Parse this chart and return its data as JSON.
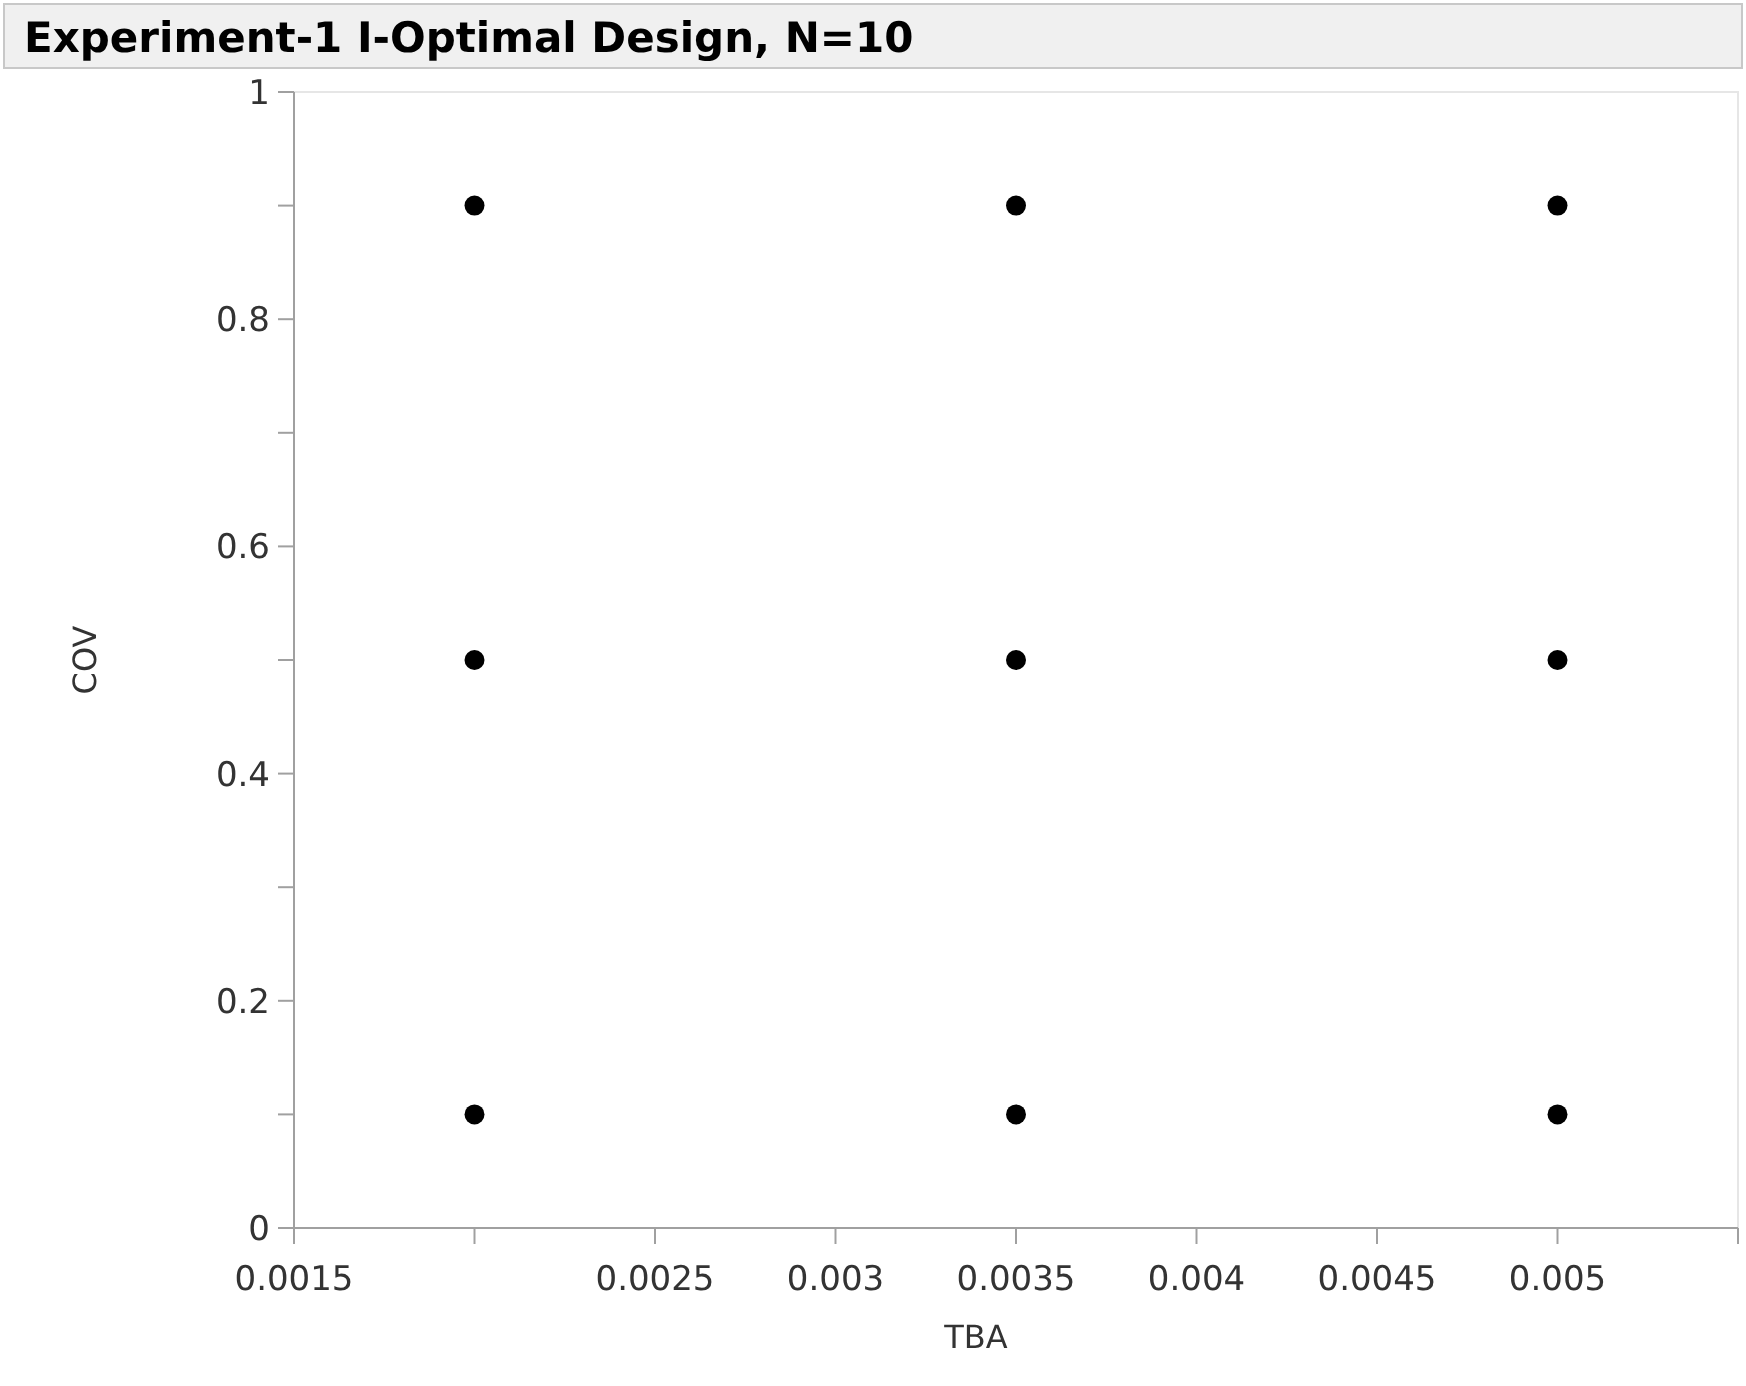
{
  "chart_data": {
    "type": "scatter",
    "title": "Experiment-1 I-Optimal Design, N=10",
    "xlabel": "TBA",
    "ylabel": "COV",
    "x": [
      0.002,
      0.0035,
      0.005,
      0.002,
      0.0035,
      0.005,
      0.002,
      0.0035,
      0.005
    ],
    "series": [
      {
        "color": "#000000",
        "values": [
          0.9,
          0.9,
          0.9,
          0.5,
          0.5,
          0.5,
          0.1,
          0.1,
          0.1
        ]
      }
    ],
    "xlim": [
      0.0015,
      0.0055
    ],
    "xticks": [
      0.0015,
      {
        "value": 0.002,
        "label": null
      },
      0.0025,
      0.003,
      0.0035,
      0.004,
      0.0045,
      0.005,
      {
        "value": 0.0055,
        "label": null
      }
    ],
    "ylim": [
      0,
      1
    ],
    "yticks": [
      0,
      {
        "value": 0.1,
        "label": null
      },
      0.2,
      {
        "value": 0.3,
        "label": null
      },
      0.4,
      {
        "value": 0.5,
        "label": null
      },
      0.6,
      {
        "value": 0.7,
        "label": null
      },
      0.8,
      {
        "value": 0.9,
        "label": null
      },
      1
    ],
    "grid": false,
    "marker": "circle"
  }
}
